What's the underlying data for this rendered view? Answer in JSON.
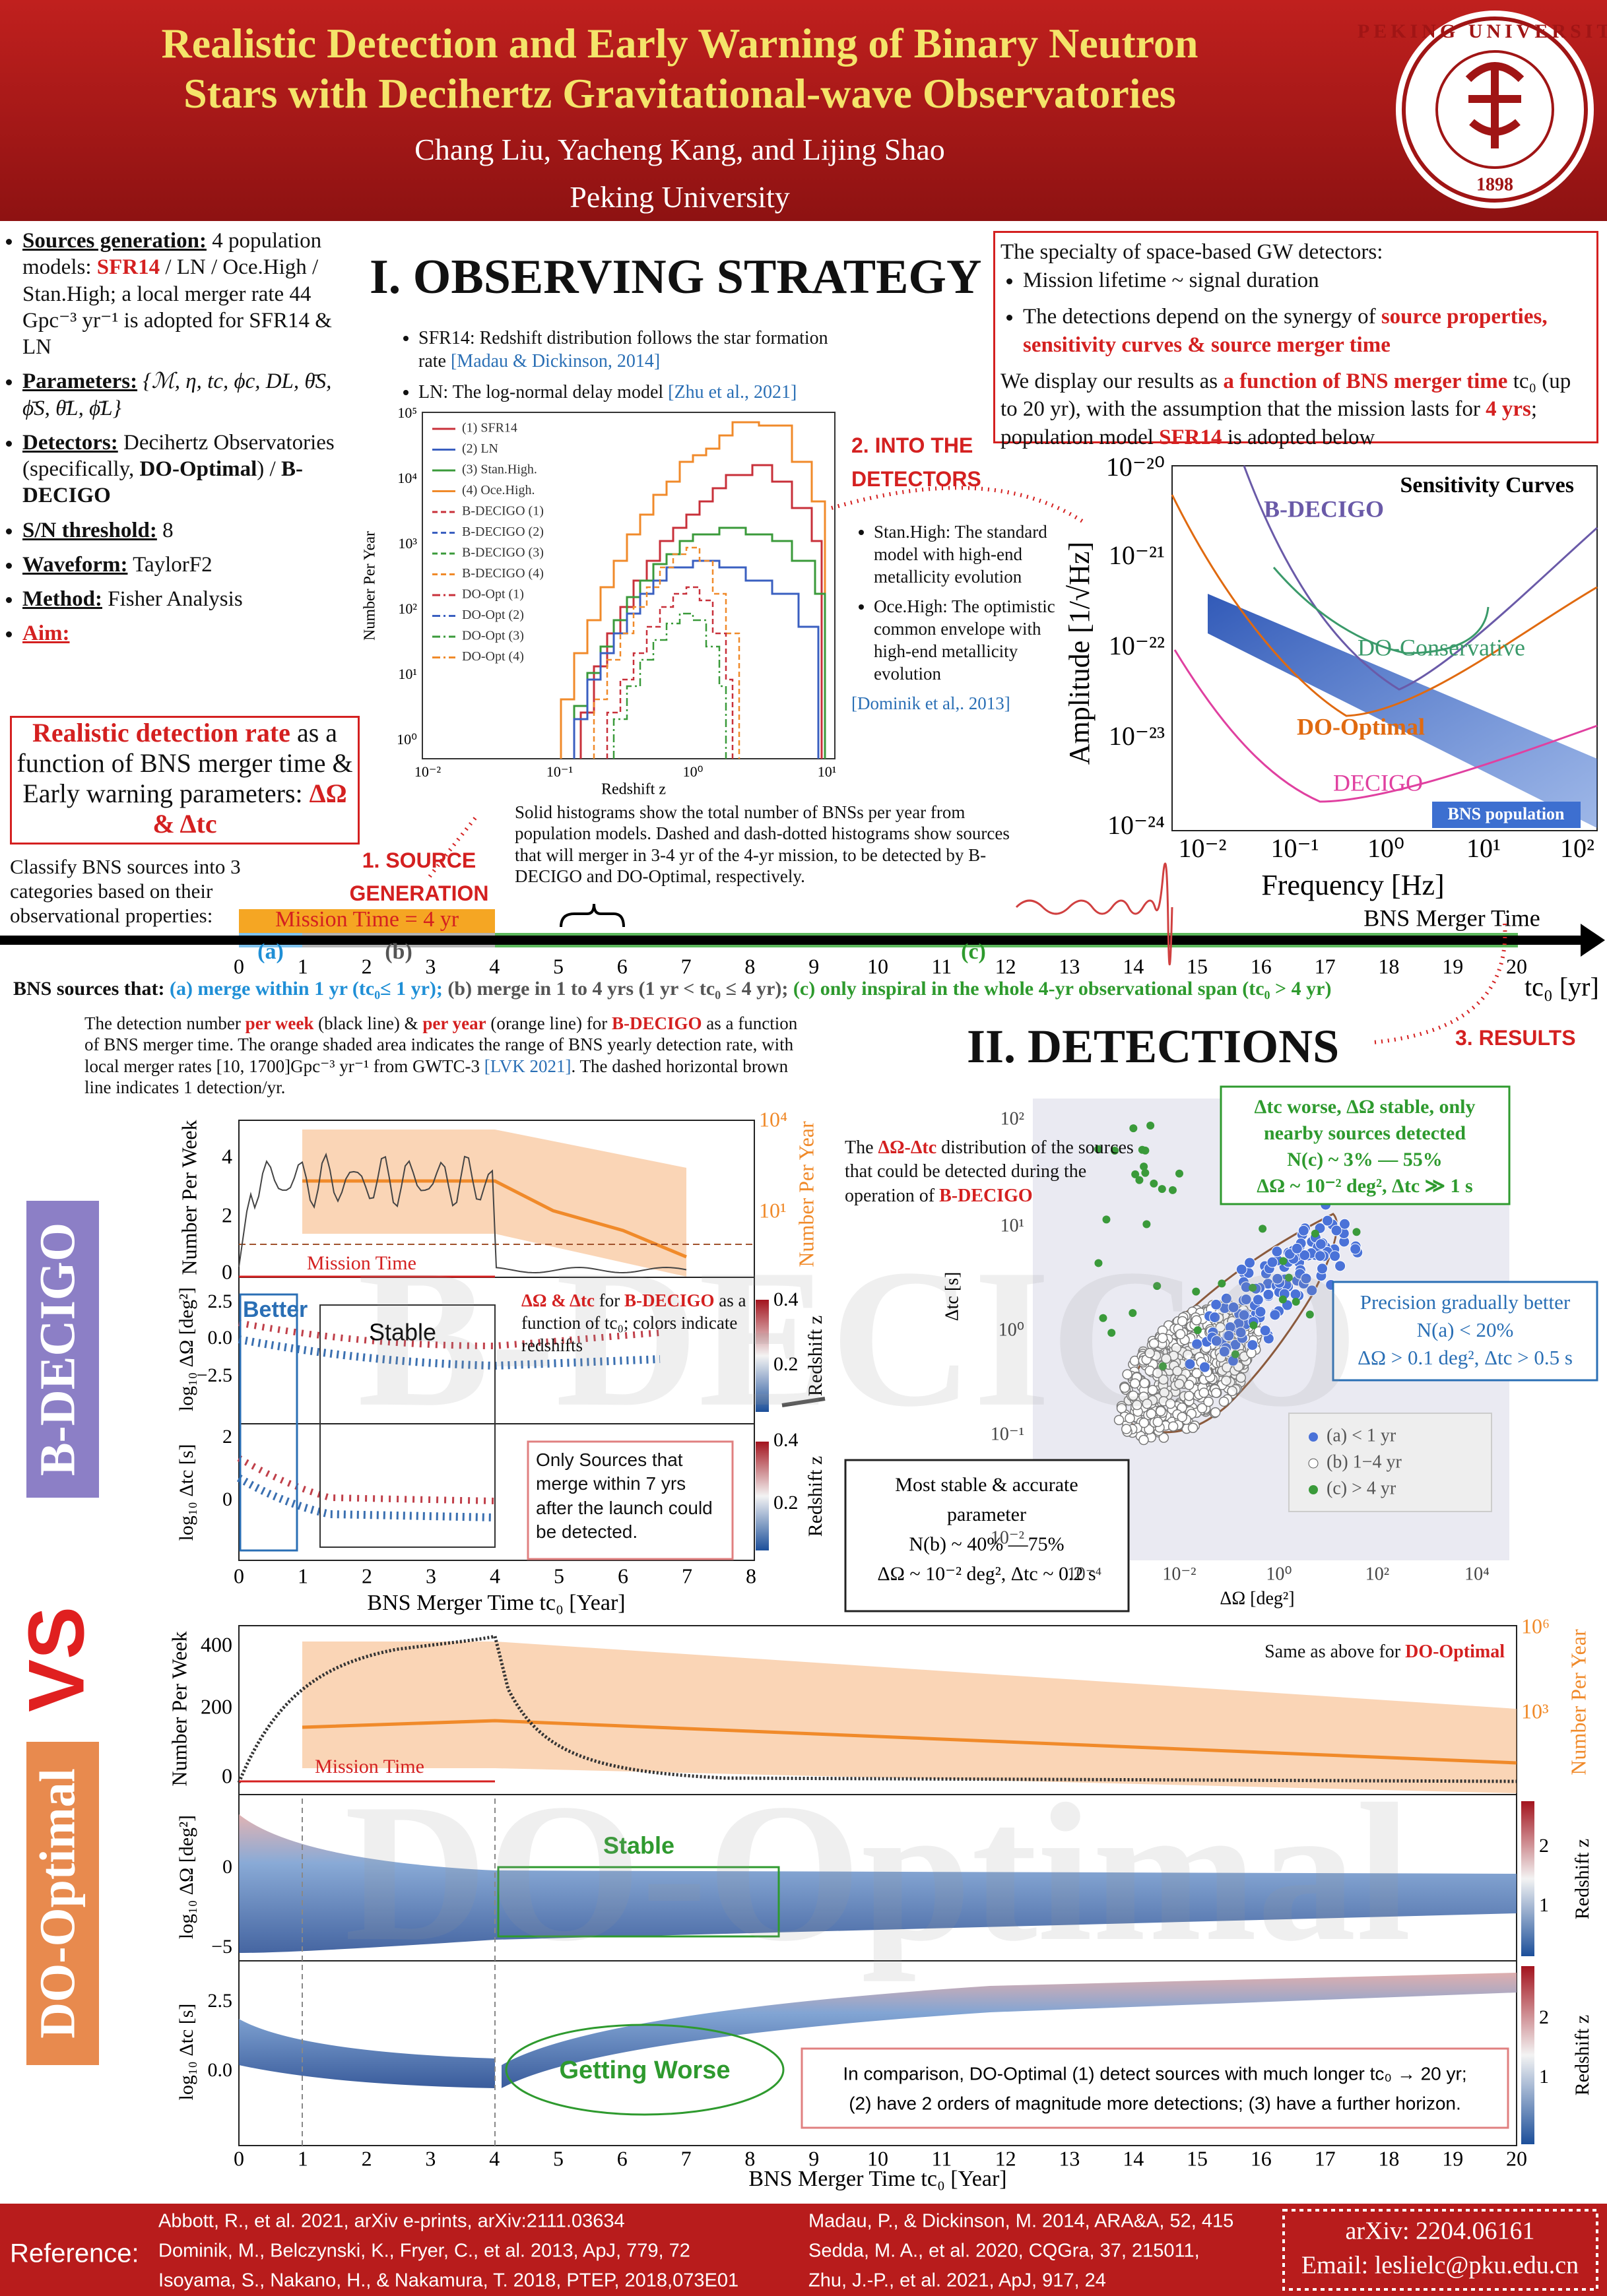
{
  "header": {
    "title_lines": [
      "Realistic Detection and Early Warning of Binary Neutron",
      "Stars with Decihertz Gravitational-wave Observatories"
    ],
    "authors": "Chang Liu, Yacheng Kang, and Lijing Shao",
    "affiliation": "Peking University",
    "logo_text": "PEKING UNIVERSITY",
    "logo_year": "1898"
  },
  "left": {
    "bullets": [
      [
        [
          "Sources generation:",
          "u"
        ],
        [
          " 4 population models: ",
          "n"
        ],
        [
          "SFR14",
          "r"
        ],
        [
          " / LN / Oce.High / Stan.High; a local merger rate 44 Gpc⁻³ yr⁻¹ is adopted for SFR14 & LN",
          "n"
        ]
      ],
      [
        [
          "Parameters:",
          "u"
        ],
        [
          " {ℳ, η, tc, ϕc, DL, θ̄S, ϕ̄S, θ̄L, ϕ̄L}",
          "i"
        ]
      ],
      [
        [
          "Detectors:",
          "u"
        ],
        [
          " Decihertz Observatories (specifically, ",
          "n"
        ],
        [
          "DO-Optimal",
          "b"
        ],
        [
          ") / ",
          "n"
        ],
        [
          "B-DECIGO",
          "b"
        ]
      ],
      [
        [
          "S/N threshold:",
          "u"
        ],
        [
          " 8",
          "n"
        ]
      ],
      [
        [
          "Waveform:",
          "u"
        ],
        [
          " TaylorF2",
          "n"
        ]
      ],
      [
        [
          "Method:",
          "u"
        ],
        [
          " Fisher Analysis",
          "n"
        ]
      ],
      [
        [
          "Aim:",
          "x"
        ]
      ]
    ],
    "aim": [
      [
        "Realistic detection rate",
        "r"
      ],
      [
        " as a function of BNS merger time & Early warning parameters: ",
        "n"
      ],
      [
        "ΔΩ & Δtc",
        "r"
      ]
    ],
    "classify": "Classify BNS sources into 3 categories based on their observational properties:"
  },
  "strategy": {
    "title": "I. OBSERVING STRATEGY",
    "notes": [
      [
        [
          "SFR14: Redshift distribution follows the star formation rate ",
          "n"
        ],
        [
          "[Madau & Dickinson, 2014]",
          "c"
        ]
      ],
      [
        [
          "LN: The log-normal delay model ",
          "n"
        ],
        [
          "[Zhu et al., 2021]",
          "c"
        ]
      ]
    ],
    "hist": {
      "legend": [
        "(1) SFR14",
        "(2) LN",
        "(3) Stan.High.",
        "(4) Oce.High.",
        "B-DECIGO (1)",
        "B-DECIGO (2)",
        "B-DECIGO (3)",
        "B-DECIGO (4)",
        "DO-Opt (1)",
        "DO-Opt (2)",
        "DO-Opt (3)",
        "DO-Opt (4)"
      ],
      "colors": [
        "#c8303a",
        "#3a5fc0",
        "#3a9a3a",
        "#f08a2a"
      ],
      "ylabel": "Number Per Year",
      "xlabel": "Redshift z",
      "yticks": [
        "10⁵",
        "10⁴",
        "10³",
        "10²",
        "10¹",
        "10⁰"
      ],
      "xticks": [
        "10⁻²",
        "10⁻¹",
        "10⁰",
        "10¹"
      ]
    },
    "into": [
      "2. INTO THE",
      "DETECTORS"
    ],
    "pop": [
      [
        [
          "Stan.High: The standard model with high-end metallicity evolution",
          "n"
        ]
      ],
      [
        [
          "Oce.High: The optimistic common envelope with high-end metallicity evolution",
          "n"
        ]
      ]
    ],
    "pop_cite": "[Dominik et al,. 2013]",
    "caption": "Solid histograms show the total number of BNSs per year from population models. Dashed and dash-dotted histograms show sources that will merger in 3-4 yr of the 4-yr mission, to be detected by B-DECIGO and DO-Optimal, respectively.",
    "source_gen": [
      "1. SOURCE",
      "GENERATION"
    ]
  },
  "specialty": {
    "intro": "The specialty of space-based GW detectors:",
    "bullets": [
      [
        [
          "Mission lifetime ~ signal duration",
          "n"
        ]
      ],
      [
        [
          "The detections depend on the synergy of ",
          "n"
        ],
        [
          "source properties, sensitivity curves & source merger time",
          "r"
        ]
      ]
    ],
    "body": [
      [
        "We display our results as ",
        "n"
      ],
      [
        "a function of BNS merger time",
        "r"
      ],
      [
        " tc₀ (up to 20 yr), with the assumption that the mission lasts for ",
        "n"
      ],
      [
        "4 yrs",
        "r"
      ],
      [
        "; population model ",
        "n"
      ],
      [
        "SFR14",
        "r"
      ],
      [
        " is adopted below",
        "n"
      ]
    ]
  },
  "sensitivity": {
    "title": "Sensitivity Curves",
    "curves": [
      "B-DECIGO",
      "DO-Conservative",
      "DO-Optimal",
      "DECIGO"
    ],
    "population": "BNS population",
    "ylabel": "Amplitude [1/√Hz]",
    "xlabel": "Frequency [Hz]",
    "yticks": [
      "10⁻²⁰",
      "10⁻²¹",
      "10⁻²²",
      "10⁻²³",
      "10⁻²⁴"
    ],
    "xticks": [
      "10⁻²",
      "10⁻¹",
      "10⁰",
      "10¹",
      "10²"
    ]
  },
  "timeline": {
    "mission": "Mission Time = 4 yr",
    "label": "BNS Merger Time",
    "ticks": [
      0,
      1,
      2,
      3,
      4,
      5,
      6,
      7,
      8,
      9,
      10,
      11,
      12,
      13,
      14,
      15,
      16,
      17,
      18,
      19,
      20
    ],
    "cats": [
      "(a)",
      "(b)",
      "(c)"
    ],
    "unit": "tc₀ [yr]",
    "sources": [
      [
        "BNS sources that: ",
        "B"
      ],
      [
        "(a) merge within 1 yr (tc₀≤ 1 yr);",
        "a"
      ],
      [
        " (b) merge in 1 to 4 yrs (1 yr < tc₀ ≤ 4 yr);",
        "k"
      ],
      [
        " (c) only inspiral in the whole 4-yr observational span (tc₀ > 4 yr)",
        "g"
      ]
    ]
  },
  "detections": {
    "title": "II. DETECTIONS",
    "results": "3. RESULTS"
  },
  "bdecigo": {
    "side": "B-DECIGO",
    "watermark": "B-DECIGO",
    "caption": [
      [
        "The detection number ",
        "n"
      ],
      [
        "per week",
        "r"
      ],
      [
        " (black line) & ",
        "n"
      ],
      [
        "per year",
        "r"
      ],
      [
        " (orange line) for ",
        "n"
      ],
      [
        "B-DECIGO",
        "r"
      ],
      [
        " as a function of BNS merger time. The orange shaded area indicates the range of BNS yearly detection rate, with local merger rates [10, 1700]Gpc⁻³ yr⁻¹ from GWTC-3 ",
        "n"
      ],
      [
        "[LVK 2021]",
        "c"
      ],
      [
        ". The dashed horizontal brown line indicates 1 detection/yr.",
        "n"
      ]
    ],
    "top": {
      "yticks": [
        4,
        2,
        0
      ],
      "y2ticks": [
        "10⁴",
        "10¹"
      ],
      "ylabel": "Number Per Week",
      "y2label": "Number Per Year",
      "mission": "Mission Time"
    },
    "mid": {
      "yticks": [
        "2.5",
        "0.0",
        "−2.5"
      ],
      "ylabel": "log₁₀ ΔΩ [deg²]",
      "cticks": [
        "0.4",
        "0.2"
      ],
      "clabel": "Redshift z",
      "better": "Better",
      "stable": "Stable",
      "note": [
        [
          "ΔΩ & Δtc",
          "r"
        ],
        [
          " for ",
          "n"
        ],
        [
          "B-DECIGO",
          "r"
        ],
        [
          " as a function of tc₀; colors indicate redshifts",
          "n"
        ]
      ]
    },
    "bot": {
      "yticks": [
        2,
        0
      ],
      "ylabel": "log₁₀ Δtc [s]",
      "cticks": [
        "0.4",
        "0.2"
      ],
      "clabel": "Redshift z",
      "note": "Only Sources that merge within 7 yrs after the launch could be detected."
    },
    "xticks": [
      0,
      1,
      2,
      3,
      4,
      5,
      6,
      7,
      8
    ],
    "xlabel": "BNS Merger Time tc₀ [Year]"
  },
  "scatter": {
    "intro": [
      [
        "The ",
        "n"
      ],
      [
        "ΔΩ-Δtc",
        "r"
      ],
      [
        " distribution of the sources that could be detected during the operation of ",
        "n"
      ],
      [
        "B-DECIGO",
        "r"
      ]
    ],
    "yticks": [
      "10²",
      "10¹",
      "10⁰",
      "10⁻¹",
      "10⁻²"
    ],
    "xticks": [
      "10⁻⁴",
      "10⁻²",
      "10⁰",
      "10²",
      "10⁴"
    ],
    "ylabel": "Δtc [s]",
    "xlabel": "ΔΩ [deg²]",
    "green": [
      "Δtc worse, ΔΩ stable, only",
      "nearby sources detected",
      "N(c) ~ 3% — 55%",
      "ΔΩ ~ 10⁻² deg², Δtc ≫ 1 s"
    ],
    "blue": [
      "Precision gradually better",
      "N(a) < 20%",
      "ΔΩ > 0.1 deg², Δtc > 0.5 s"
    ],
    "legend": [
      "(a)  < 1 yr",
      "(b) 1−4 yr",
      "(c)  > 4 yr"
    ],
    "stable": [
      "Most stable & accurate",
      "parameter",
      "N(b) ~ 40% —75%",
      "ΔΩ ~ 10⁻² deg², Δtc ~ 0.2 s"
    ]
  },
  "vs": "VS",
  "dooptimal": {
    "side": "DO-Optimal",
    "watermark": "DO-Optimal",
    "same": [
      [
        "Same as above for ",
        "n"
      ],
      [
        "DO-Optimal",
        "r"
      ]
    ],
    "top": {
      "yticks": [
        400,
        200,
        0
      ],
      "y2ticks": [
        "10⁶",
        "10³"
      ],
      "ylabel": "Number Per Week",
      "y2label": "Number Per Year",
      "mission": "Mission Time"
    },
    "mid": {
      "yticks": [
        0,
        "−5"
      ],
      "ylabel": "log₁₀ ΔΩ [deg²]",
      "cticks": [
        2,
        1
      ],
      "clabel": "Redshift z",
      "stable": "Stable"
    },
    "bot": {
      "yticks": [
        "2.5",
        "0.0"
      ],
      "ylabel": "log₁₀ Δtc [s]",
      "cticks": [
        2,
        1
      ],
      "clabel": "Redshift z",
      "worse": "Getting Worse"
    },
    "conclusion": [
      "In comparison, DO-Optimal (1) detect sources with much longer tc₀ → 20 yr;",
      "(2) have 2 orders of magnitude more detections; (3) have a further horizon."
    ],
    "xticks": [
      0,
      1,
      2,
      3,
      4,
      5,
      6,
      7,
      8,
      9,
      10,
      11,
      12,
      13,
      14,
      15,
      16,
      17,
      18,
      19,
      20
    ],
    "xlabel": "BNS Merger Time tc₀ [Year]"
  },
  "footer": {
    "label": "Reference:",
    "refs_left": [
      "Abbott, R., et al. 2021, arXiv e-prints, arXiv:2111.03634",
      "Dominik, M., Belczynski, K., Fryer, C., et al. 2013, ApJ, 779, 72",
      "Isoyama, S., Nakano, H., & Nakamura, T. 2018, PTEP, 2018,073E01"
    ],
    "refs_right": [
      "Madau, P., & Dickinson, M. 2014, ARA&A, 52, 415",
      "Sedda, M. A., et al. 2020, CQGra, 37, 215011,",
      "Zhu, J.-P., et al. 2021, ApJ, 917, 24"
    ],
    "arxiv": "arXiv: 2204.06161",
    "email": "Email: leslielc@pku.edu.cn"
  }
}
